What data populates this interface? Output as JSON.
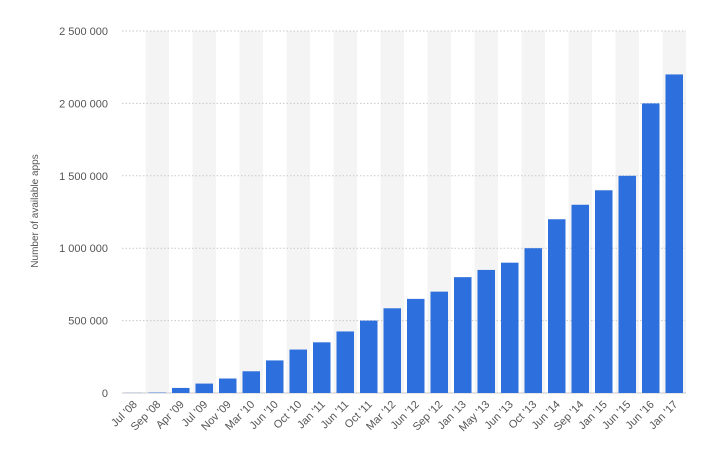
{
  "chart_data": {
    "type": "bar",
    "title": "",
    "xlabel": "",
    "ylabel": "Number of available apps",
    "ylim": [
      0,
      2500000
    ],
    "yticks": [
      0,
      500000,
      1000000,
      1500000,
      2000000,
      2500000
    ],
    "ytick_labels": [
      "0",
      "500 000",
      "1 000 000",
      "1 500 000",
      "2 000 000",
      "2 500 000"
    ],
    "grid": "horizontal dotted",
    "legend": "none",
    "bar_color": "#2d6fdc",
    "band_color": "#f4f4f4",
    "categories": [
      "Jul '08",
      "Sep '08",
      "Apr '09",
      "Jul '09",
      "Nov '09",
      "Mar '10",
      "Jun '10",
      "Oct '10",
      "Jan '11",
      "Jun '11",
      "Oct '11",
      "Mar '12",
      "Jun '12",
      "Sep '12",
      "Jan '13",
      "May '13",
      "Jun '13",
      "Oct '13",
      "Jun '14",
      "Sep '14",
      "Jan '15",
      "Jun '15",
      "Jun '16",
      "Jan '17"
    ],
    "values": [
      800,
      3000,
      35000,
      65000,
      100000,
      150000,
      225000,
      300000,
      350000,
      425000,
      500000,
      585000,
      650000,
      700000,
      800000,
      850000,
      900000,
      1000000,
      1200000,
      1300000,
      1400000,
      1500000,
      2000000,
      2200000
    ]
  }
}
